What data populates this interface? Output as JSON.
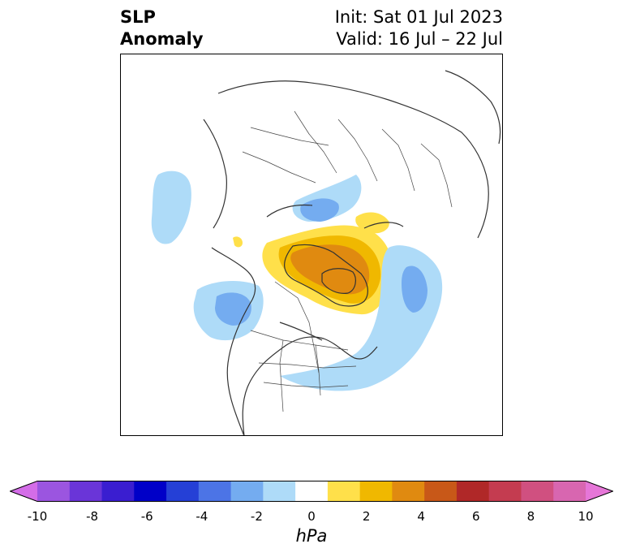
{
  "title": {
    "left_line1": "SLP",
    "left_line2": "Anomaly",
    "right_line1": "Init: Sat 01 Jul 2023",
    "right_line2": "Valid: 16 Jul – 22 Jul"
  },
  "colorbar": {
    "label": "hPa",
    "ticks": [
      "-10",
      "-8",
      "-6",
      "-4",
      "-2",
      "0",
      "2",
      "4",
      "6",
      "8",
      "10"
    ],
    "colors": [
      "#d46de8",
      "#9b55e0",
      "#6a35d8",
      "#3a1ed0",
      "#0000c8",
      "#2540d6",
      "#4c74e6",
      "#74acf0",
      "#aedbf8",
      "#ffffff",
      "#ffe04a",
      "#f0b800",
      "#e08a10",
      "#c85818",
      "#b02828",
      "#c43c50",
      "#d05080",
      "#d866b0",
      "#e676d8"
    ],
    "extend": "both"
  }
}
